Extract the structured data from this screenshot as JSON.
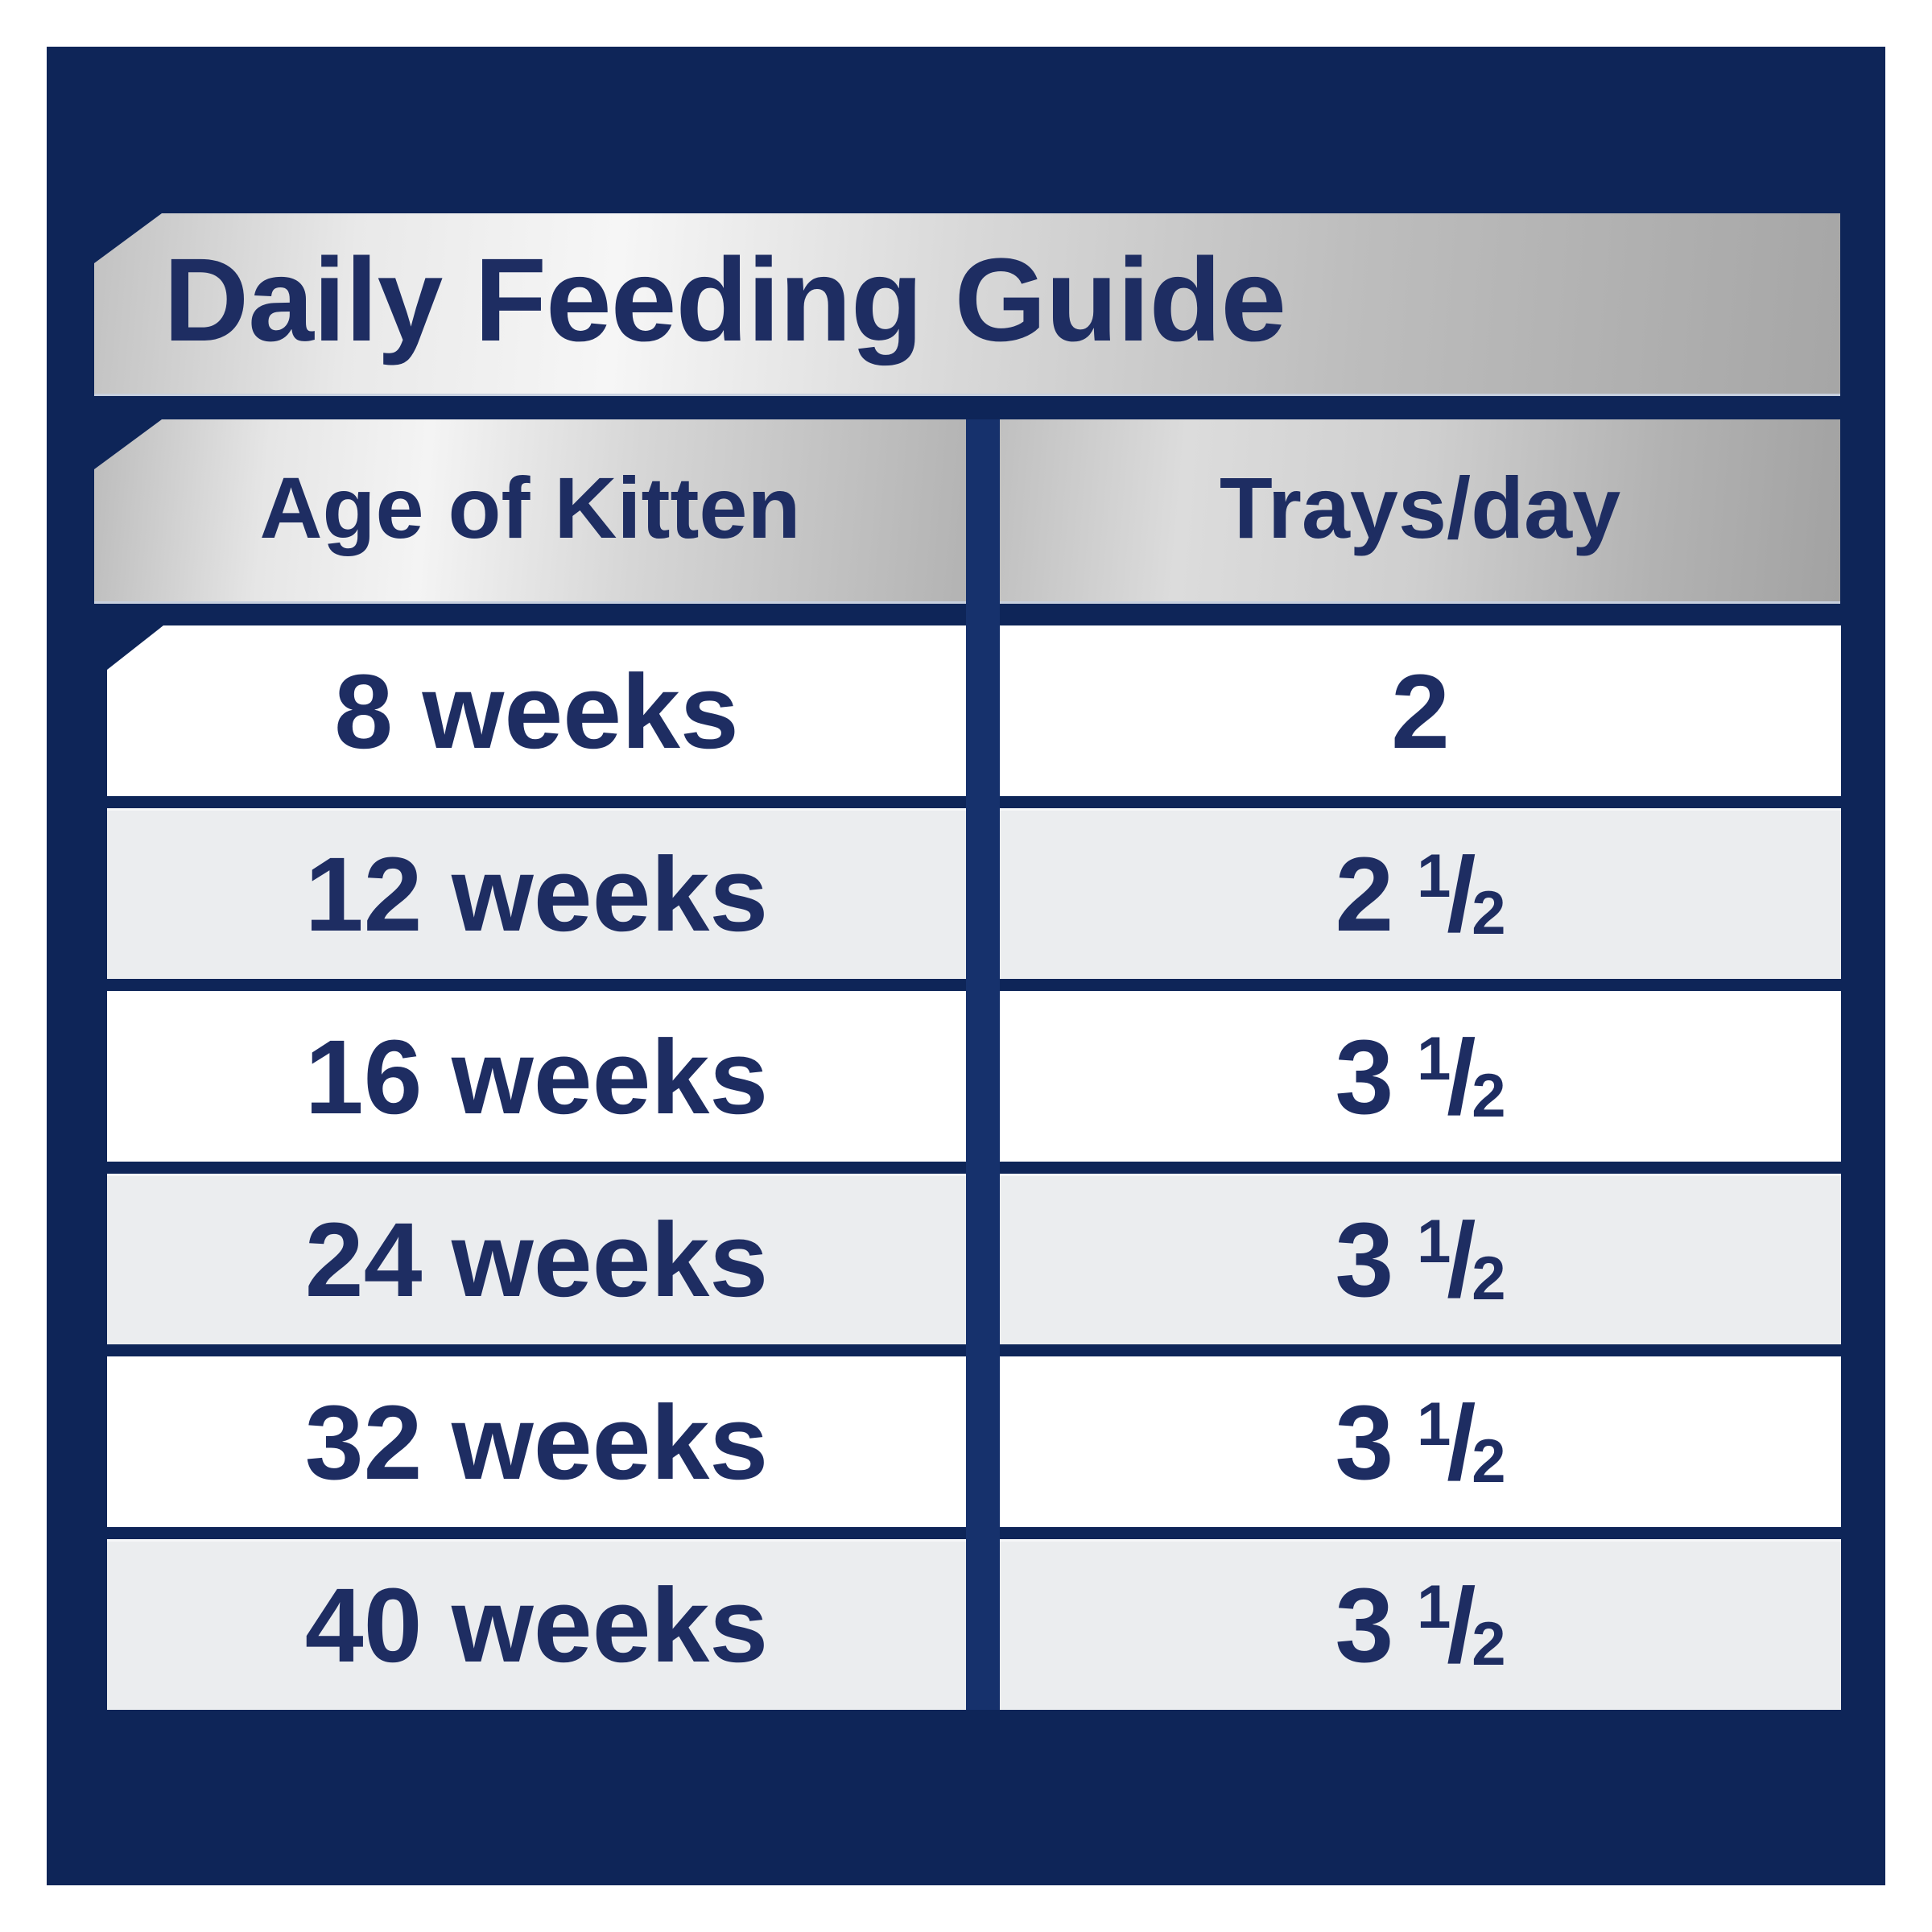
{
  "title": {
    "label": "Daily Feeding Guide"
  },
  "table": {
    "columns": [
      {
        "label": "Age of Kitten"
      },
      {
        "label": "Trays/day"
      }
    ],
    "rows": [
      {
        "age": "8 weeks",
        "trays_whole": "2",
        "trays_num": "",
        "trays_den": ""
      },
      {
        "age": "12 weeks",
        "trays_whole": "2",
        "trays_num": "1",
        "trays_den": "2"
      },
      {
        "age": "16 weeks",
        "trays_whole": "3",
        "trays_num": "1",
        "trays_den": "2"
      },
      {
        "age": "24 weeks",
        "trays_whole": "3",
        "trays_num": "1",
        "trays_den": "2"
      },
      {
        "age": "32 weeks",
        "trays_whole": "3",
        "trays_num": "1",
        "trays_den": "2"
      },
      {
        "age": "40 weeks",
        "trays_whole": "3",
        "trays_num": "1",
        "trays_den": "2"
      }
    ]
  },
  "chart_data": {
    "type": "table",
    "title": "Daily Feeding Guide",
    "columns": [
      "Age of Kitten",
      "Trays/day"
    ],
    "rows": [
      [
        "8 weeks",
        "2"
      ],
      [
        "12 weeks",
        "2 ½"
      ],
      [
        "16 weeks",
        "3 ½"
      ],
      [
        "24 weeks",
        "3 ½"
      ],
      [
        "32 weeks",
        "3 ½"
      ],
      [
        "40 weeks",
        "3 ½"
      ]
    ],
    "ages_weeks": [
      8,
      12,
      16,
      24,
      32,
      40
    ],
    "trays_per_day": [
      2,
      2.5,
      3.5,
      3.5,
      3.5,
      3.5
    ]
  },
  "colors": {
    "panel-navy": "#0e2558",
    "divider-navy": "#16316c",
    "text-navy": "#1e2d62",
    "row-white": "#ffffff",
    "row-gray": "#ebedef",
    "silver-light": "#f6f6f6",
    "silver-dark": "#a2a2a2",
    "edge-light": "#c7d0df",
    "page-white": "#ffffff"
  }
}
